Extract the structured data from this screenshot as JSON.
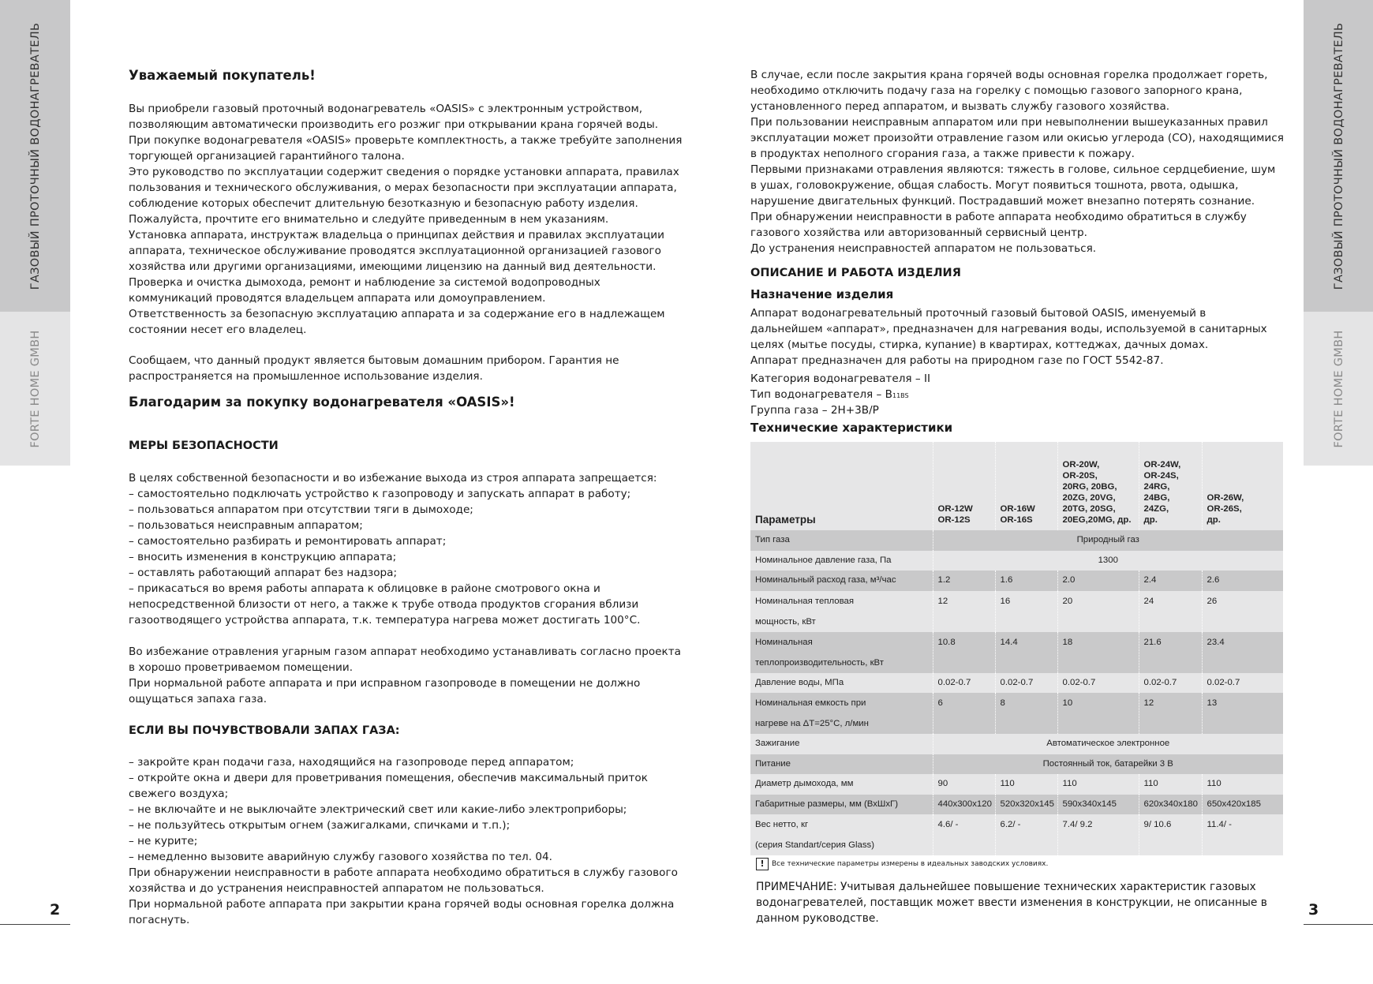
{
  "sidebar": {
    "title": "ГАЗОВЫЙ ПРОТОЧНЫЙ ВОДОНАГРЕВАТЕЛЬ",
    "brand": "FORTE HOME GMBH"
  },
  "left_page": {
    "number": "2",
    "greeting": "Уважаемый покупатель!",
    "intro": "Вы приобрели газовый проточный водонагреватель «OASIS» с электронным устройством,\nпозволяющим автоматически производить его розжиг при открывании крана горячей воды.\nПри покупке водонагревателя «OASIS» проверьте комплектность, а также требуйте заполнения\nторгующей организацией гарантийного талона.\nЭто руководство по эксплуатации содержит сведения о порядке установки аппарата, правилах\nпользования и технического обслуживания, о мерах безопасности при эксплуатации аппарата,\nсоблюдение которых обеспечит длительную безотказную и безопасную работу изделия.\nПожалуйста, прочтите его внимательно и следуйте приведенным в нем указаниям.\nУстановка аппарата, инструктаж владельца о принципах действия и правилах эксплуатации\nаппарата, техническое обслуживание проводятся эксплуатационной организацией газового\nхозяйства или другими организациями, имеющими лицензию на данный вид деятельности.\nПроверка и очистка дымохода, ремонт и наблюдение за системой водопроводных\nкоммуникаций проводятся владельцем аппарата или домоуправлением.\nОтветственность за безопасную эксплуатацию аппарата и за содержание его в надлежащем\nсостоянии несет его владелец.",
    "household": "Сообщаем, что данный продукт является бытовым домашним прибором. Гарантия не\nраспространяется на промышленное использование изделия.",
    "thanks": "Благодарим за покупку водонагревателя «OASIS»!",
    "safety_heading": "МЕРЫ БЕЗОПАСНОСТИ",
    "safety_text": "В целях собственной безопасности и во избежание выхода из строя аппарата запрещается:\n– самостоятельно подключать устройство к газопроводу и запускать аппарат в работу;\n– пользоваться аппаратом при отсутствии тяги в дымоходе;\n– пользоваться неисправным аппаратом;\n– самостоятельно разбирать и ремонтировать аппарат;\n– вносить изменения в конструкцию аппарата;\n– оставлять работающий аппарат без надзора;\n– прикасаться во время работы аппарата к облицовке в районе смотрового окна и\nнепосредственной близости от него, а также к трубе отвода продуктов сгорания вблизи\nгазоотводящего устройства аппарата, т.к. температура нагрева может достигать 100°С.",
    "ventilation_text": "Во избежание отравления угарным газом аппарат необходимо устанавливать согласно проекта\nв хорошо проветриваемом помещении.\nПри нормальной работе аппарата и при исправном газопроводе в помещении не должно\nощущаться запаха газа.",
    "gas_heading": "ЕСЛИ ВЫ ПОЧУВСТВОВАЛИ ЗАПАХ ГАЗА:",
    "gas_text": "– закройте кран подачи газа, находящийся на газопроводе перед аппаратом;\n– откройте окна и двери для проветривания помещения, обеспечив максимальный приток\nсвежего воздуха;\n– не включайте и не выключайте электрический свет или какие-либо электроприборы;\n– не пользуйтесь открытым огнем (зажигалками, спичками и т.п.);\n– не курите;\n– немедленно вызовите аварийную службу газового хозяйства по тел. 04.\nПри обнаружении неисправности в работе аппарата необходимо обратиться в службу газового\nхозяйства и до устранения неисправностей аппаратом не пользоваться.\nПри нормальной работе аппарата при закрытии крана горячей воды основная горелка должна\nпогаснуть."
  },
  "right_page": {
    "number": "3",
    "warning_text": "В случае, если после закрытия крана горячей воды основная горелка продолжает гореть,\nнеобходимо отключить подачу газа на горелку с помощью газового запорного крана,\nустановленного перед аппаратом, и вызвать службу газового хозяйства.\nПри пользовании неисправным аппаратом или при невыполнении вышеуказанных правил\nэксплуатации может произойти отравление газом или окисью углерода (СО), находящимися\nв продуктах неполного сгорания газа, а также привести к пожару.\nПервыми признаками отравления являются: тяжесть в голове, сильное сердцебиение, шум\nв ушах, головокружение, общая слабость. Могут появиться тошнота, рвота, одышка,\nнарушение двигательных функций. Пострадавший может внезапно потерять сознание.\nПри обнаружении неисправности в работе аппарата необходимо обратиться в службу\nгазового хозяйства или авторизованный сервисный центр.\nДо устранения неисправностей аппаратом не пользоваться.",
    "description_heading": "ОПИСАНИЕ И РАБОТА ИЗДЕЛИЯ",
    "purpose_heading": "Назначение изделия",
    "purpose_text": "Аппарат водонагревательный проточный газовый бытовой OASIS, именуемый в\nдальнейшем «аппарат», предназначен для нагревания воды, используемой в санитарных\nцелях (мытье посуды, стирка, купание) в квартирах, коттеджах, дачных домах.\nАппарат предназначен для работы на природном газе по ГОСТ 5542-87.",
    "category": "Категория водонагревателя – II",
    "type_prefix": "Тип водонагревателя – B",
    "type_sub": "11BS",
    "gas_group": "Группа газа – 2H+3B/P",
    "specs_heading": "Технические характеристики",
    "table": {
      "headers": [
        "Параметры",
        "OR-12W\nOR-12S",
        "OR-16W\nOR-16S",
        "OR-20W,\nOR-20S,\n20RG, 20BG,\n20ZG, 20VG,\n20TG, 20SG,\n20EG,20MG, др.",
        "OR-24W,\nOR-24S,\n24RG,\n24BG,\n24ZG,\nдр.",
        "OR-26W,\nOR-26S,\nдр."
      ],
      "rows": [
        {
          "param": "Тип газа",
          "span": "Природный газ"
        },
        {
          "param": "Номинальное давление газа, Па",
          "span": "1300"
        },
        {
          "param": "Номинальный расход газа, м³/час",
          "values": [
            "1.2",
            "1.6",
            "2.0",
            "2.4",
            "2.6"
          ]
        },
        {
          "param": "Номинальная тепловая\nмощность, кВт",
          "values": [
            "12",
            "16",
            "20",
            "24",
            "26"
          ]
        },
        {
          "param": "Номинальная\nтеплопроизводительность, кВт",
          "values": [
            "10.8",
            "14.4",
            "18",
            "21.6",
            "23.4"
          ]
        },
        {
          "param": "Давление воды, МПа",
          "values": [
            "0.02-0.7",
            "0.02-0.7",
            "0.02-0.7",
            "0.02-0.7",
            "0.02-0.7"
          ]
        },
        {
          "param": "Номинальная емкость при\nнагреве на ΔT=25°C, л/мин",
          "values": [
            "6",
            "8",
            "10",
            "12",
            "13"
          ]
        },
        {
          "param": "Зажигание",
          "span": "Автоматическое электронное"
        },
        {
          "param": "Питание",
          "span": "Постоянный ток, батарейки 3 В"
        },
        {
          "param": "Диаметр дымохода, мм",
          "values": [
            "90",
            "110",
            "110",
            "110",
            "110"
          ]
        },
        {
          "param": "Габаритные размеры, мм (ВхШхГ)",
          "values": [
            "440x300x120",
            "520x320x145",
            "590x340x145",
            "620x340x180",
            "650x420x185"
          ]
        },
        {
          "param": "Вес нетто, кг\n(серия Standart/серия Glass)",
          "values": [
            "4.6/ -",
            "6.2/ -",
            "7.4/ 9.2",
            "9/ 10.6",
            "11.4/ -"
          ]
        }
      ]
    },
    "table_note_icon": "exclamation-box-icon",
    "table_note": "Все технические параметры измерены в идеальных заводских условиях.",
    "remark": "ПРИМЕЧАНИЕ: Учитывая дальнейшее повышение технических характеристик газовых\nводонагревателей, поставщик может ввести изменения в конструкции, не описанные в\nданном руководстве."
  }
}
